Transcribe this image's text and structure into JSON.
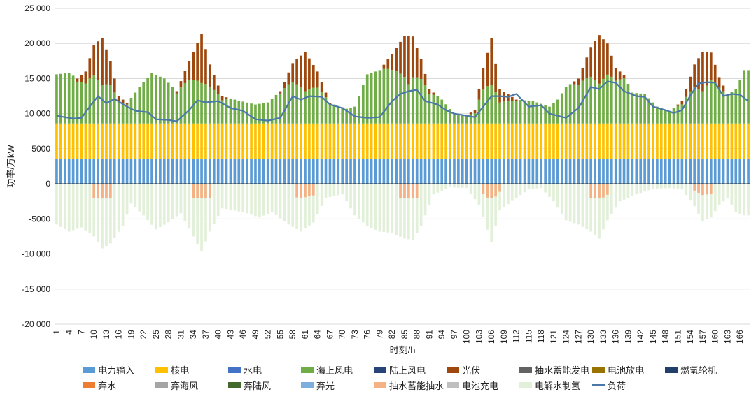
{
  "chart_data": {
    "type": "bar",
    "xlabel": "时刻/h",
    "ylabel": "功率/万kW",
    "ylim": [
      -20000,
      25000
    ],
    "yticks": [
      "25 000",
      "20 000",
      "15 000",
      "10 000",
      "5000",
      "0",
      "-5000",
      "-10 000",
      "-15 000",
      "-20 000"
    ],
    "ytick_values": [
      25000,
      20000,
      15000,
      10000,
      5000,
      0,
      -5000,
      -10000,
      -15000,
      -20000
    ],
    "x_range": [
      1,
      168
    ],
    "xticks": [
      1,
      4,
      7,
      10,
      13,
      16,
      19,
      22,
      25,
      28,
      31,
      34,
      37,
      40,
      43,
      46,
      49,
      52,
      55,
      58,
      61,
      64,
      67,
      70,
      73,
      76,
      79,
      82,
      85,
      88,
      91,
      94,
      97,
      100,
      103,
      106,
      109,
      112,
      115,
      118,
      121,
      124,
      127,
      130,
      133,
      136,
      139,
      142,
      145,
      148,
      151,
      154,
      157,
      160,
      163,
      166
    ],
    "grid": "horizontal",
    "legend_position": "bottom",
    "stacked": true,
    "constant_series": {
      "电力输入": 3600,
      "核电": 5000,
      "水电": 0
    },
    "series_colors": {
      "电力输入": "#5b9bd5",
      "核电": "#ffc000",
      "水电": "#4472c4",
      "海上风电": "#70ad47",
      "陆上风电": "#264478",
      "光伏": "#9e480e",
      "抽水蓄能发电": "#636363",
      "电池放电": "#997300",
      "燃氢轮机": "#223f6a",
      "弃水": "#ed7d31",
      "弃海风": "#a5a5a5",
      "弃陆风": "#43682b",
      "弃光": "#7cafdd",
      "抽水蓄能抽水": "#f4b183",
      "电池充电": "#bfbfbf",
      "电解水制氢": "#e2f0d9",
      "负荷": "#4a78a8"
    },
    "hourly_profile_keypoints": {
      "total_positive_top": [
        [
          1,
          15600
        ],
        [
          4,
          15800
        ],
        [
          6,
          15000
        ],
        [
          8,
          16000
        ],
        [
          10,
          19800
        ],
        [
          12,
          20800
        ],
        [
          14,
          17500
        ],
        [
          16,
          12500
        ],
        [
          18,
          11500
        ],
        [
          22,
          14500
        ],
        [
          24,
          15800
        ],
        [
          27,
          15000
        ],
        [
          30,
          13200
        ],
        [
          33,
          17500
        ],
        [
          36,
          21400
        ],
        [
          38,
          17000
        ],
        [
          41,
          12500
        ],
        [
          44,
          12000
        ],
        [
          49,
          11300
        ],
        [
          52,
          11600
        ],
        [
          55,
          13200
        ],
        [
          58,
          17200
        ],
        [
          61,
          18800
        ],
        [
          64,
          16000
        ],
        [
          67,
          11500
        ],
        [
          71,
          10700
        ],
        [
          73,
          11000
        ],
        [
          76,
          15600
        ],
        [
          79,
          16200
        ],
        [
          82,
          18500
        ],
        [
          85,
          21100
        ],
        [
          87,
          21000
        ],
        [
          89,
          17800
        ],
        [
          91,
          13500
        ],
        [
          94,
          12000
        ],
        [
          97,
          10000
        ],
        [
          100,
          9800
        ],
        [
          102,
          10500
        ],
        [
          104,
          16500
        ],
        [
          106,
          20800
        ],
        [
          108,
          13500
        ],
        [
          112,
          12000
        ],
        [
          116,
          11800
        ],
        [
          120,
          11000
        ],
        [
          122,
          12000
        ],
        [
          124,
          13800
        ],
        [
          127,
          15000
        ],
        [
          130,
          19500
        ],
        [
          132,
          21200
        ],
        [
          134,
          20000
        ],
        [
          136,
          16500
        ],
        [
          138,
          15500
        ],
        [
          140,
          13000
        ],
        [
          143,
          12800
        ],
        [
          146,
          11000
        ],
        [
          149,
          10300
        ],
        [
          152,
          11800
        ],
        [
          155,
          17000
        ],
        [
          157,
          18800
        ],
        [
          159,
          18700
        ],
        [
          161,
          15200
        ],
        [
          163,
          12800
        ],
        [
          165,
          13500
        ],
        [
          167,
          16200
        ]
      ],
      "load": [
        [
          1,
          9700
        ],
        [
          3,
          9500
        ],
        [
          5,
          9300
        ],
        [
          7,
          9400
        ],
        [
          9,
          11000
        ],
        [
          11,
          12500
        ],
        [
          13,
          11500
        ],
        [
          15,
          12100
        ],
        [
          18,
          11000
        ],
        [
          20,
          10400
        ],
        [
          23,
          10200
        ],
        [
          25,
          9200
        ],
        [
          28,
          9100
        ],
        [
          30,
          8900
        ],
        [
          33,
          10500
        ],
        [
          35,
          11900
        ],
        [
          37,
          11600
        ],
        [
          40,
          11800
        ],
        [
          43,
          10800
        ],
        [
          46,
          10400
        ],
        [
          49,
          9200
        ],
        [
          52,
          9000
        ],
        [
          55,
          9400
        ],
        [
          58,
          12500
        ],
        [
          60,
          12000
        ],
        [
          62,
          12500
        ],
        [
          65,
          12400
        ],
        [
          67,
          11300
        ],
        [
          70,
          10800
        ],
        [
          73,
          9600
        ],
        [
          76,
          9400
        ],
        [
          79,
          9500
        ],
        [
          82,
          11800
        ],
        [
          84,
          12800
        ],
        [
          86,
          13200
        ],
        [
          88,
          13400
        ],
        [
          90,
          11800
        ],
        [
          93,
          11300
        ],
        [
          95,
          10500
        ],
        [
          97,
          10000
        ],
        [
          100,
          9700
        ],
        [
          102,
          9500
        ],
        [
          104,
          11000
        ],
        [
          106,
          12500
        ],
        [
          108,
          12500
        ],
        [
          110,
          12400
        ],
        [
          112,
          12800
        ],
        [
          115,
          11000
        ],
        [
          118,
          11200
        ],
        [
          120,
          10000
        ],
        [
          122,
          9700
        ],
        [
          124,
          9400
        ],
        [
          127,
          10800
        ],
        [
          130,
          13800
        ],
        [
          132,
          13500
        ],
        [
          134,
          14600
        ],
        [
          136,
          14400
        ],
        [
          138,
          13200
        ],
        [
          141,
          12500
        ],
        [
          143,
          12400
        ],
        [
          145,
          11000
        ],
        [
          148,
          10500
        ],
        [
          150,
          10100
        ],
        [
          152,
          10500
        ],
        [
          154,
          12600
        ],
        [
          156,
          14300
        ],
        [
          158,
          14500
        ],
        [
          160,
          14400
        ],
        [
          162,
          12500
        ],
        [
          164,
          12800
        ],
        [
          166,
          12700
        ],
        [
          168,
          11800
        ]
      ],
      "solar_peaks_days": [
        12,
        36,
        61,
        86,
        106,
        132,
        157
      ],
      "negative_bottom_keypoints": [
        [
          1,
          -5800
        ],
        [
          4,
          -6800
        ],
        [
          7,
          -6200
        ],
        [
          10,
          -7500
        ],
        [
          12,
          -9200
        ],
        [
          14,
          -8500
        ],
        [
          17,
          -6000
        ],
        [
          19,
          -2800
        ],
        [
          22,
          -4500
        ],
        [
          25,
          -6500
        ],
        [
          28,
          -5500
        ],
        [
          31,
          -4200
        ],
        [
          34,
          -7500
        ],
        [
          36,
          -9600
        ],
        [
          38,
          -6800
        ],
        [
          41,
          -3500
        ],
        [
          44,
          -3800
        ],
        [
          47,
          -4200
        ],
        [
          50,
          -4800
        ],
        [
          53,
          -4000
        ],
        [
          57,
          -5800
        ],
        [
          60,
          -6800
        ],
        [
          63,
          -5500
        ],
        [
          66,
          -2000
        ],
        [
          70,
          -1500
        ],
        [
          73,
          -4500
        ],
        [
          76,
          -6000
        ],
        [
          79,
          -6800
        ],
        [
          82,
          -7000
        ],
        [
          85,
          -7800
        ],
        [
          87,
          -8000
        ],
        [
          89,
          -6000
        ],
        [
          92,
          -1500
        ],
        [
          96,
          -500
        ],
        [
          100,
          -600
        ],
        [
          103,
          -3000
        ],
        [
          106,
          -8300
        ],
        [
          108,
          -3800
        ],
        [
          112,
          -2000
        ],
        [
          115,
          -800
        ],
        [
          118,
          -600
        ],
        [
          121,
          -2500
        ],
        [
          124,
          -5200
        ],
        [
          127,
          -5800
        ],
        [
          130,
          -6800
        ],
        [
          132,
          -7800
        ],
        [
          134,
          -5200
        ],
        [
          137,
          -2500
        ],
        [
          141,
          -1500
        ],
        [
          145,
          -700
        ],
        [
          149,
          -600
        ],
        [
          152,
          -800
        ],
        [
          155,
          -3200
        ],
        [
          157,
          -5300
        ],
        [
          159,
          -4800
        ],
        [
          161,
          -3000
        ],
        [
          163,
          -2000
        ],
        [
          165,
          -4000
        ],
        [
          167,
          -4500
        ]
      ]
    },
    "legend": [
      [
        "电力输入",
        "核电",
        "水电",
        "海上风电",
        "陆上风电",
        "光伏",
        "抽水蓄能发电",
        "电池放电",
        "燃氢轮机"
      ],
      [
        "弃水",
        "弃海风",
        "弃陆风",
        "弃光",
        "抽水蓄能抽水",
        "电池充电",
        "电解水制氢",
        "负荷"
      ]
    ]
  }
}
